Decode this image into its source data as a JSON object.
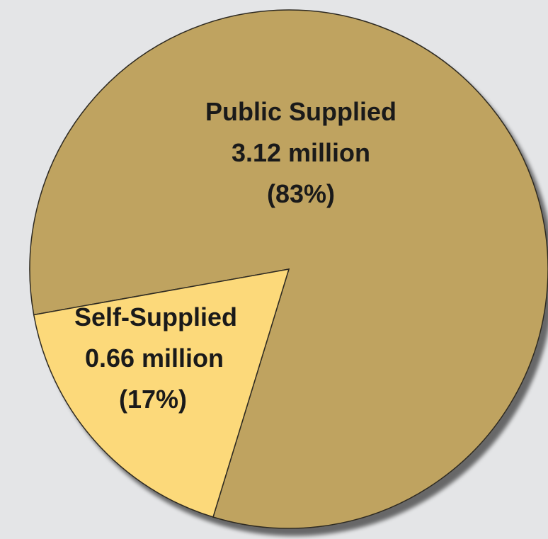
{
  "chart_data": {
    "type": "pie",
    "slices": [
      {
        "name": "Public Supplied",
        "value": 3.12,
        "value_label": "3.12 million",
        "percent": 83,
        "percent_label": "(83%)",
        "color": "#bfa360"
      },
      {
        "name": "Self-Supplied",
        "value": 0.66,
        "value_label": "0.66 million",
        "percent": 17,
        "percent_label": "(17%)",
        "color": "#fcd97a"
      }
    ],
    "outline_color": "#2e2a20",
    "background_color": "#e4e5e7"
  }
}
